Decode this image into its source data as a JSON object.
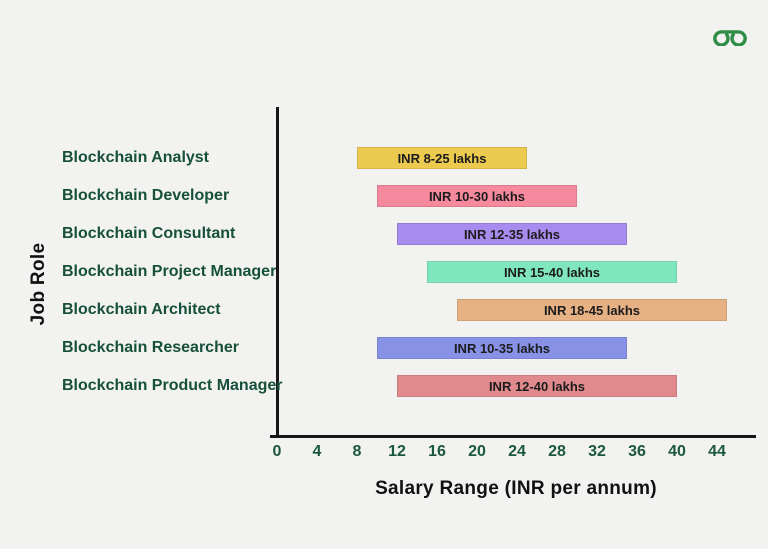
{
  "page": {
    "background_color": "#F2F2F1"
  },
  "logo": {
    "icon": "geeksforgeeks-icon",
    "brand": "GeeksforGeeks",
    "color": "#2F8D46"
  },
  "chart_data": {
    "type": "bar",
    "orientation": "horizontal",
    "title": "",
    "xlabel": "Salary Range (INR per annum)",
    "ylabel": "Job Role",
    "x_ticks": [
      0,
      4,
      8,
      12,
      16,
      20,
      24,
      28,
      32,
      36,
      40,
      44
    ],
    "xlim": [
      0,
      48
    ],
    "grid": false,
    "legend": false,
    "categories": [
      "Blockchain Analyst",
      "Blockchain Developer",
      "Blockchain Consultant",
      "Blockchain Project Manager",
      "Blockchain Architect",
      "Blockchain Researcher",
      "Blockchain Product Manager"
    ],
    "bars": [
      {
        "role": "Blockchain Analyst",
        "min": 8,
        "max": 25,
        "label": "INR 8-25 lakhs",
        "color": "#ECC94F"
      },
      {
        "role": "Blockchain Developer",
        "min": 10,
        "max": 30,
        "label": "INR 10-30 lakhs",
        "color": "#F7899E"
      },
      {
        "role": "Blockchain Consultant",
        "min": 12,
        "max": 35,
        "label": "INR 12-35 lakhs",
        "color": "#A78BEE"
      },
      {
        "role": "Blockchain Project Manager",
        "min": 15,
        "max": 40,
        "label": "INR 15-40 lakhs",
        "color": "#80E6BD"
      },
      {
        "role": "Blockchain Architect",
        "min": 18,
        "max": 45,
        "label": "INR 18-45 lakhs",
        "color": "#E6B183"
      },
      {
        "role": "Blockchain Researcher",
        "min": 10,
        "max": 35,
        "label": "INR 10-35 lakhs",
        "color": "#8791E6"
      },
      {
        "role": "Blockchain Product Manager",
        "min": 12,
        "max": 40,
        "label": "INR 12-40 lakhs",
        "color": "#E08A8D"
      }
    ],
    "text_colors": {
      "role_label": "#17503A",
      "tick_label": "#1B573E",
      "axis_title": "#111111",
      "bar_label": "#1c1c1c"
    }
  }
}
